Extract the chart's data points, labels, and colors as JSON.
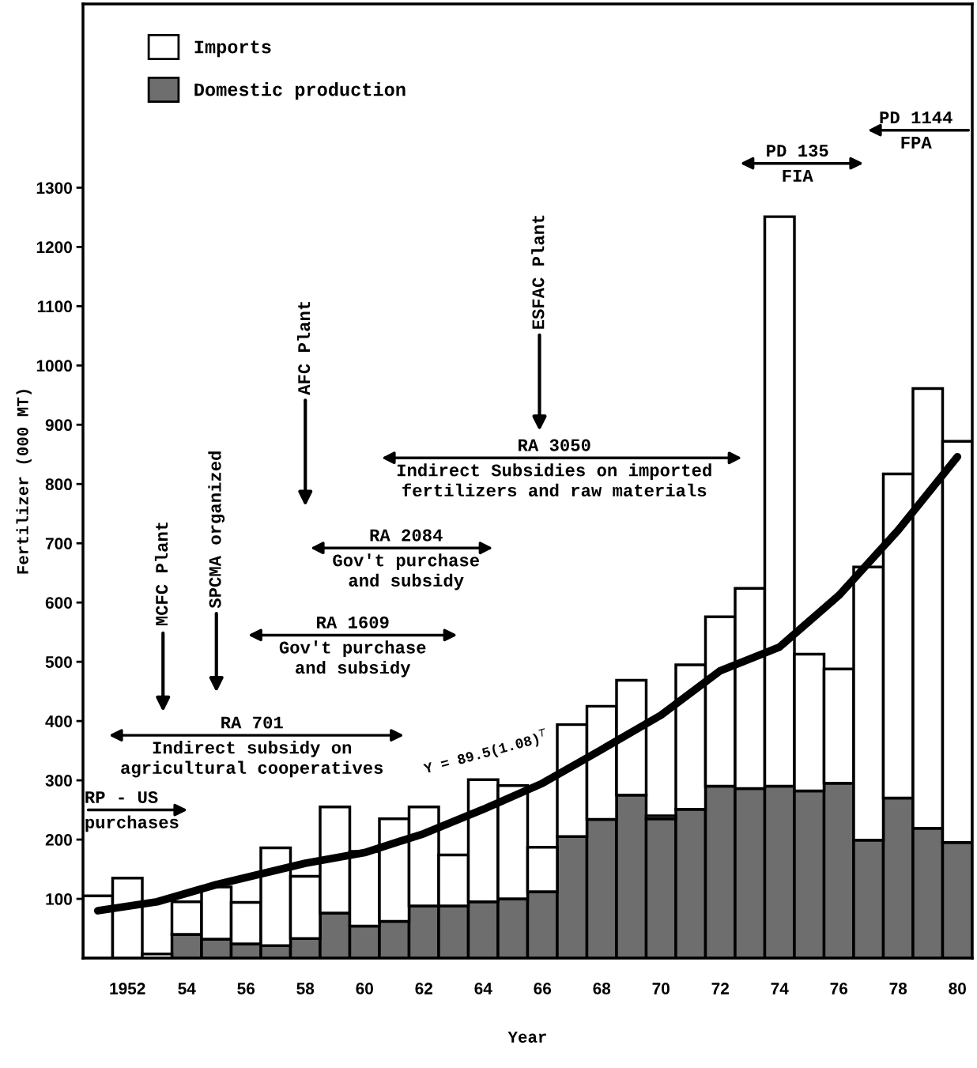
{
  "chart_data": {
    "type": "bar",
    "stacked": true,
    "xlabel": "Year",
    "ylabel": "Fertilizer (000 MT)",
    "x": [
      1951,
      1952,
      1953,
      1954,
      1955,
      1956,
      1957,
      1958,
      1959,
      1960,
      1961,
      1962,
      1963,
      1964,
      1965,
      1966,
      1967,
      1968,
      1969,
      1970,
      1971,
      1972,
      1973,
      1974,
      1975,
      1976,
      1977,
      1978,
      1979,
      1980
    ],
    "series": [
      {
        "name": "Domestic production",
        "color": "#6e6e6e",
        "values": [
          null,
          null,
          null,
          40,
          32,
          24,
          21,
          33,
          76,
          54,
          62,
          88,
          88,
          95,
          100,
          112,
          205,
          234,
          275,
          235,
          251,
          290,
          286,
          290,
          282,
          295,
          199,
          270,
          219,
          195
        ]
      },
      {
        "name": "Imports",
        "color": "#ffffff",
        "values": [
          105,
          135,
          7,
          55,
          88,
          70,
          165,
          105,
          179,
          126,
          173,
          167,
          86,
          206,
          191,
          75,
          189,
          191,
          194,
          5,
          244,
          286,
          338,
          961,
          231,
          193,
          461,
          547,
          742,
          677
        ]
      },
      {
        "name": "Y = 89.5(1.08)$^{T}$",
        "type": "line",
        "color": "#000000",
        "x": [
          1951,
          1953,
          1955,
          1958,
          1960,
          1962,
          1964,
          1966,
          1968,
          1970,
          1972,
          1974,
          1976,
          1978,
          1980
        ],
        "values": [
          80,
          95,
          124,
          160,
          178,
          210,
          251,
          295,
          352,
          410,
          485,
          525,
          612,
          722,
          846
        ]
      }
    ],
    "xlim": [
      1950.5,
      1980.5
    ],
    "xticks": [
      {
        "value": 1952,
        "label": "1952"
      },
      {
        "value": 1954,
        "label": "54"
      },
      {
        "value": 1956,
        "label": "56"
      },
      {
        "value": 1958,
        "label": "58"
      },
      {
        "value": 1960,
        "label": "60"
      },
      {
        "value": 1962,
        "label": "62"
      },
      {
        "value": 1964,
        "label": "64"
      },
      {
        "value": 1966,
        "label": "66"
      },
      {
        "value": 1968,
        "label": "68"
      },
      {
        "value": 1970,
        "label": "70"
      },
      {
        "value": 1972,
        "label": "72"
      },
      {
        "value": 1974,
        "label": "74"
      },
      {
        "value": 1976,
        "label": "76"
      },
      {
        "value": 1978,
        "label": "78"
      },
      {
        "value": 1980,
        "label": "80"
      }
    ],
    "ylim": [
      0,
      1610
    ],
    "yticks": [
      100,
      200,
      300,
      400,
      500,
      600,
      700,
      800,
      900,
      1000,
      1100,
      1200,
      1300
    ],
    "legend": "top left",
    "annotations": [
      "RP - US\npurchases",
      "RA 701\nIndirect subsidy on\nagricultural cooperatives",
      "MCFC Plant",
      "SPCMA organized",
      "RA 1609\nGov't purchase\nand subsidy",
      "AFC Plant",
      "RA 2084\nGov't purchase\nand subsidy",
      "ESFAC Plant",
      "RA 3050\nIndirect Subsidies on imported\nfertilizers and raw materials",
      "PD 135\nFIA",
      "PD 1144\nFPA"
    ]
  }
}
